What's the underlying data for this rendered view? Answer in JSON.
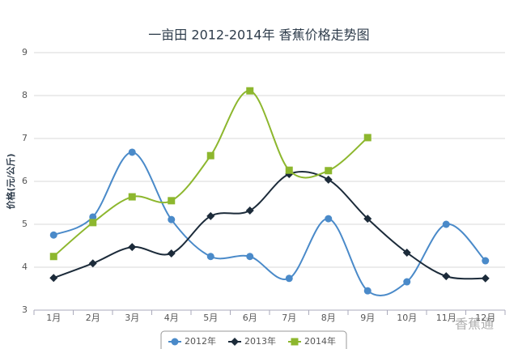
{
  "chart_data": {
    "type": "line",
    "title": "一亩田 2012-2014年 香蕉价格走势图",
    "y_label": "价格(元/公斤)",
    "watermark": "香蕉通",
    "categories": [
      "1月",
      "2月",
      "3月",
      "4月",
      "5月",
      "6月",
      "7月",
      "8月",
      "9月",
      "10月",
      "11月",
      "12月"
    ],
    "series": [
      {
        "name": "2012年",
        "color": "#4a8ac9",
        "marker": "circle",
        "values": [
          4.75,
          5.17,
          6.68,
          5.11,
          4.25,
          4.25,
          3.74,
          5.13,
          3.45,
          3.66,
          5.0,
          4.15
        ]
      },
      {
        "name": "2013年",
        "color": "#1c2b3a",
        "marker": "diamond",
        "values": [
          3.75,
          4.09,
          4.47,
          4.32,
          5.19,
          5.32,
          6.17,
          6.04,
          5.13,
          4.34,
          3.79,
          3.74
        ]
      },
      {
        "name": "2014年",
        "color": "#8db72e",
        "marker": "square",
        "values": [
          4.25,
          5.04,
          5.64,
          5.55,
          6.6,
          8.11,
          6.26,
          6.25,
          7.02,
          null,
          null,
          null
        ]
      }
    ],
    "ylim": [
      3,
      9
    ],
    "yticks": [
      3,
      4,
      5,
      6,
      7,
      8,
      9
    ],
    "grid": true,
    "smooth": true,
    "legend": "bottom"
  }
}
